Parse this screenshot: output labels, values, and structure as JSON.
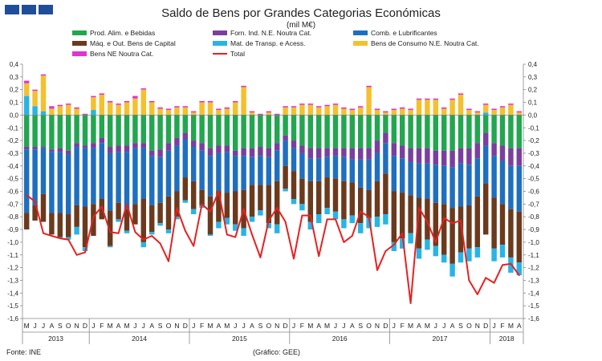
{
  "header": {
    "title": "Saldo de Bens por Grandes Categorias Económicas",
    "subtitle": "(mil M€)"
  },
  "footer": {
    "source": "Fonte: INE",
    "credit": "(Gráfico: GEE)"
  },
  "chart_data": {
    "type": "bar",
    "stacked": true,
    "title": "Saldo de Bens por Grandes Categorias Económicas",
    "ylabel": "mil M€",
    "ylim": [
      -1.6,
      0.4
    ],
    "yticks": [
      0.4,
      0.3,
      0.2,
      0.1,
      0.0,
      -0.1,
      -0.2,
      -0.3,
      -0.4,
      -0.5,
      -0.6,
      -0.7,
      -0.8,
      -0.9,
      -1.0,
      -1.1,
      -1.2,
      -1.3,
      -1.4,
      -1.5,
      -1.6
    ],
    "ytick_labels": [
      "0,4",
      "0,3",
      "0,2",
      "0,1",
      "0,0",
      "-0,1",
      "-0,2",
      "-0,3",
      "-0,4",
      "-0,5",
      "-0,6",
      "-0,7",
      "-0,8",
      "-0,9",
      "-1,0",
      "-1,1",
      "-1,2",
      "-1,3",
      "-1,4",
      "-1,5",
      "-1,6"
    ],
    "categories": [
      "M",
      "J",
      "J",
      "A",
      "S",
      "O",
      "N",
      "D",
      "J",
      "F",
      "M",
      "A",
      "M",
      "J",
      "J",
      "A",
      "S",
      "O",
      "N",
      "D",
      "J",
      "F",
      "M",
      "A",
      "M",
      "J",
      "J",
      "A",
      "S",
      "O",
      "N",
      "D",
      "J",
      "F",
      "M",
      "A",
      "M",
      "J",
      "J",
      "A",
      "S",
      "O",
      "N",
      "D",
      "J",
      "F",
      "M",
      "A",
      "M",
      "J",
      "J",
      "A",
      "S",
      "O",
      "N",
      "D",
      "J",
      "F",
      "M",
      "A"
    ],
    "years": [
      {
        "label": "2013",
        "start": 0,
        "end": 7
      },
      {
        "label": "2014",
        "start": 8,
        "end": 19
      },
      {
        "label": "2015",
        "start": 20,
        "end": 31
      },
      {
        "label": "2016",
        "start": 32,
        "end": 43
      },
      {
        "label": "2017",
        "start": 44,
        "end": 55
      },
      {
        "label": "2018",
        "start": 56,
        "end": 59
      }
    ],
    "legend": [
      {
        "name": "Prod. Alim. e Bebidas",
        "color": "#22a650",
        "kind": "bar"
      },
      {
        "name": "Forn. Ind. N.E. Noutra Cat.",
        "color": "#7a3f9e",
        "kind": "bar"
      },
      {
        "name": "Comb. e Lubrificantes",
        "color": "#1f6fbf",
        "kind": "bar"
      },
      {
        "name": "Máq. e Out. Bens de Capital",
        "color": "#6b3a1d",
        "kind": "bar"
      },
      {
        "name": "Mat. de Transp. e Acess.",
        "color": "#27b4e6",
        "kind": "bar"
      },
      {
        "name": "Bens de Consumo N.E. Noutra Cat.",
        "color": "#f4c02e",
        "kind": "bar"
      },
      {
        "name": "Bens NE Noutra Cat.",
        "color": "#e033d2",
        "kind": "bar"
      },
      {
        "name": "Total",
        "color": "#e8201f",
        "kind": "line"
      }
    ],
    "series": [
      {
        "name": "Prod. Alim. e Bebidas",
        "values": [
          -0.25,
          -0.25,
          -0.25,
          -0.27,
          -0.26,
          -0.28,
          -0.22,
          -0.24,
          -0.22,
          -0.18,
          -0.25,
          -0.24,
          -0.24,
          -0.22,
          -0.22,
          -0.28,
          -0.27,
          -0.22,
          -0.18,
          -0.14,
          -0.2,
          -0.22,
          -0.26,
          -0.24,
          -0.24,
          -0.28,
          -0.26,
          -0.26,
          -0.25,
          -0.26,
          -0.22,
          -0.16,
          -0.2,
          -0.24,
          -0.26,
          -0.26,
          -0.26,
          -0.26,
          -0.26,
          -0.26,
          -0.26,
          -0.26,
          -0.2,
          -0.14,
          -0.22,
          -0.24,
          -0.26,
          -0.26,
          -0.26,
          -0.28,
          -0.28,
          -0.28,
          -0.26,
          -0.26,
          -0.22,
          -0.14,
          -0.22,
          -0.24,
          -0.26,
          -0.26
        ]
      },
      {
        "name": "Forn. Ind. N.E. Noutra Cat.",
        "values": [
          -0.02,
          -0.02,
          -0.01,
          -0.02,
          -0.03,
          -0.03,
          -0.03,
          -0.02,
          -0.04,
          -0.04,
          -0.05,
          -0.05,
          -0.05,
          -0.04,
          -0.04,
          -0.04,
          -0.06,
          -0.06,
          -0.06,
          -0.05,
          -0.05,
          -0.06,
          -0.06,
          -0.06,
          -0.05,
          -0.04,
          -0.06,
          -0.07,
          -0.07,
          -0.07,
          -0.06,
          -0.04,
          -0.06,
          -0.06,
          -0.08,
          -0.08,
          -0.07,
          -0.06,
          -0.07,
          -0.09,
          -0.09,
          -0.09,
          -0.1,
          -0.08,
          -0.1,
          -0.1,
          -0.11,
          -0.12,
          -0.12,
          -0.11,
          -0.12,
          -0.13,
          -0.12,
          -0.13,
          -0.12,
          -0.1,
          -0.1,
          -0.12,
          -0.14,
          -0.14
        ]
      },
      {
        "name": "Comb. e Lubrificantes",
        "values": [
          -0.5,
          -0.44,
          -0.36,
          -0.48,
          -0.48,
          -0.47,
          -0.46,
          -0.46,
          -0.44,
          -0.44,
          -0.45,
          -0.4,
          -0.45,
          -0.44,
          -0.4,
          -0.39,
          -0.36,
          -0.36,
          -0.36,
          -0.3,
          -0.27,
          -0.31,
          -0.32,
          -0.3,
          -0.32,
          -0.28,
          -0.27,
          -0.22,
          -0.23,
          -0.22,
          -0.24,
          -0.2,
          -0.18,
          -0.2,
          -0.18,
          -0.18,
          -0.16,
          -0.18,
          -0.19,
          -0.18,
          -0.22,
          -0.24,
          -0.22,
          -0.24,
          -0.28,
          -0.27,
          -0.26,
          -0.27,
          -0.28,
          -0.3,
          -0.3,
          -0.32,
          -0.34,
          -0.32,
          -0.3,
          -0.3,
          -0.33,
          -0.34,
          -0.34,
          -0.36
        ]
      },
      {
        "name": "Máq. e Out. Bens de Capital",
        "values": [
          -0.13,
          -0.12,
          -0.22,
          -0.17,
          -0.19,
          -0.18,
          -0.17,
          -0.32,
          -0.25,
          -0.16,
          -0.28,
          -0.13,
          -0.17,
          -0.16,
          -0.34,
          -0.21,
          -0.16,
          -0.26,
          -0.2,
          -0.18,
          -0.22,
          -0.12,
          -0.3,
          -0.24,
          -0.2,
          -0.26,
          -0.3,
          -0.25,
          -0.2,
          -0.3,
          -0.34,
          -0.18,
          -0.22,
          -0.2,
          -0.32,
          -0.26,
          -0.24,
          -0.26,
          -0.3,
          -0.26,
          -0.28,
          -0.22,
          -0.28,
          -0.32,
          -0.4,
          -0.36,
          -0.3,
          -0.4,
          -0.32,
          -0.34,
          -0.4,
          -0.44,
          -0.36,
          -0.34,
          -0.4,
          -0.4,
          -0.4,
          -0.32,
          -0.38,
          -0.4
        ]
      },
      {
        "name": "Mat. de Transp. e Acess.",
        "values": [
          0.15,
          0.07,
          0.03,
          0.0,
          -0.01,
          -0.02,
          -0.06,
          -0.03,
          0.04,
          0.0,
          -0.01,
          -0.02,
          -0.02,
          0.0,
          -0.04,
          -0.02,
          -0.02,
          -0.03,
          -0.02,
          -0.02,
          -0.04,
          -0.02,
          -0.01,
          -0.05,
          -0.05,
          -0.05,
          -0.06,
          -0.04,
          -0.04,
          -0.04,
          -0.07,
          -0.02,
          -0.04,
          -0.05,
          -0.06,
          -0.07,
          -0.05,
          -0.06,
          -0.07,
          -0.06,
          -0.08,
          -0.08,
          -0.08,
          -0.08,
          -0.07,
          -0.08,
          -0.08,
          -0.08,
          -0.08,
          -0.08,
          -0.06,
          -0.1,
          -0.08,
          -0.1,
          -0.08,
          0.02,
          -0.1,
          -0.1,
          -0.12,
          -0.1
        ]
      },
      {
        "name": "Bens de Consumo N.E. Noutra Cat.",
        "values": [
          0.1,
          0.12,
          0.28,
          0.05,
          0.07,
          0.08,
          0.05,
          0.0,
          0.1,
          0.16,
          0.1,
          0.08,
          0.1,
          0.13,
          0.2,
          0.1,
          0.05,
          0.04,
          0.06,
          0.06,
          0.02,
          0.1,
          0.1,
          0.04,
          0.05,
          0.1,
          0.22,
          0.02,
          0.0,
          0.02,
          0.0,
          0.06,
          0.06,
          0.08,
          0.08,
          0.06,
          0.07,
          0.08,
          0.05,
          0.04,
          0.06,
          0.22,
          0.04,
          0.02,
          0.04,
          0.05,
          0.04,
          0.12,
          0.12,
          0.12,
          0.05,
          0.12,
          0.16,
          0.04,
          0.02,
          0.06,
          0.04,
          0.06,
          0.08,
          0.02
        ]
      },
      {
        "name": "Bens NE Noutra Cat.",
        "values": [
          0.02,
          0.01,
          0.01,
          0.02,
          0.01,
          0.01,
          0.01,
          0.01,
          0.01,
          0.01,
          0.01,
          0.01,
          0.01,
          0.02,
          0.01,
          0.01,
          0.01,
          0.01,
          0.01,
          0.01,
          0.01,
          0.01,
          0.01,
          0.01,
          0.01,
          0.01,
          0.01,
          0.01,
          0.01,
          0.01,
          0.01,
          0.01,
          0.01,
          0.01,
          0.01,
          0.01,
          0.01,
          0.01,
          0.01,
          0.01,
          0.01,
          0.01,
          0.01,
          0.01,
          0.01,
          0.01,
          0.01,
          0.01,
          0.01,
          0.01,
          0.01,
          0.01,
          0.01,
          0.01,
          0.01,
          0.01,
          0.01,
          0.01,
          0.01,
          0.01
        ]
      }
    ],
    "total": [
      -0.63,
      -0.68,
      -0.93,
      -0.95,
      -0.97,
      -0.98,
      -1.1,
      -1.08,
      -0.8,
      -0.72,
      -0.92,
      -0.93,
      -0.7,
      -0.92,
      -0.98,
      -0.95,
      -1.01,
      -1.15,
      -0.73,
      -0.91,
      -1.03,
      -0.7,
      -0.76,
      -0.6,
      -0.94,
      -0.96,
      -0.74,
      -0.94,
      -1.12,
      -0.83,
      -0.73,
      -0.84,
      -1.13,
      -0.79,
      -0.79,
      -1.11,
      -0.82,
      -0.82,
      -1.0,
      -0.95,
      -0.76,
      -0.8,
      -1.22,
      -1.07,
      -1.02,
      -0.93,
      -1.48,
      -0.73,
      -0.84,
      -1.0,
      -0.81,
      -0.85,
      -0.83,
      -1.3,
      -1.41,
      -1.28,
      -1.32,
      -1.18,
      -1.17,
      -1.26
    ]
  }
}
